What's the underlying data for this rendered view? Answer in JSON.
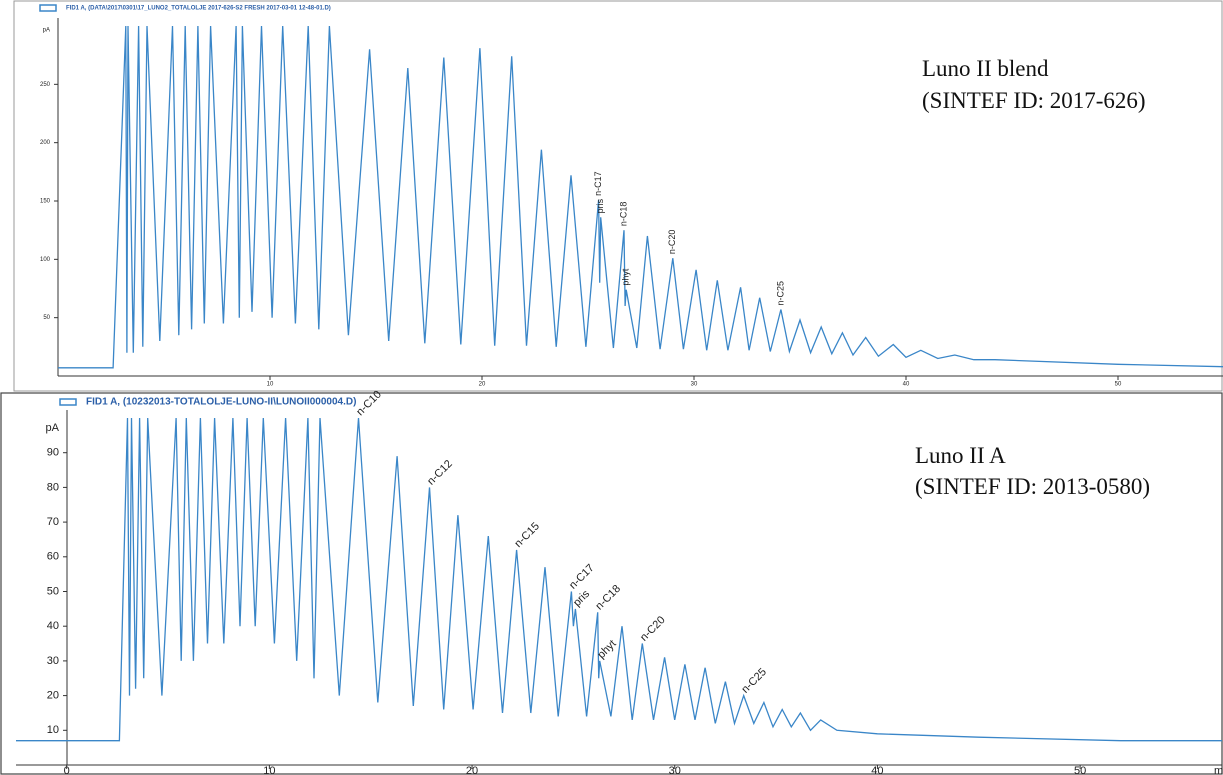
{
  "chart_data": [
    {
      "type": "line",
      "title": "Luno II blend",
      "subtitle": "(SINTEF ID: 2017-626)",
      "y_label": "pA",
      "x": [
        0,
        2.6,
        3.2,
        3.25,
        3.3,
        3.55,
        3.8,
        4.0,
        4.2,
        4.8,
        5.4,
        5.7,
        6.0,
        6.3,
        6.6,
        6.9,
        7.2,
        7.8,
        8.4,
        8.55,
        8.7,
        9.15,
        9.6,
        10.1,
        10.6,
        11.2,
        11.8,
        12.3,
        12.8,
        13.7,
        14.7,
        15.6,
        16.5,
        17.3,
        18.2,
        19.0,
        19.9,
        20.6,
        21.4,
        22.1,
        22.8,
        23.5,
        24.2,
        24.9,
        25.5,
        25.55,
        25.6,
        26.2,
        26.7,
        26.75,
        26.8,
        27.3,
        27.8,
        28.4,
        29.0,
        29.5,
        30.1,
        30.6,
        31.1,
        31.6,
        32.2,
        32.6,
        33.1,
        33.6,
        34.1,
        34.5,
        35.0,
        35.5,
        36.0,
        36.5,
        37.0,
        37.5,
        38.1,
        38.7,
        39.4,
        40.0,
        40.7,
        41.5,
        42.3,
        43.2,
        44.2,
        50,
        55
      ],
      "series": [
        {
          "name": "FID1 A, (DATA\\2017\\0301\\17_LUNO2_TOTALOLJE 2017-626-S2 FRESH 2017-03-01 12-48-01.D)",
          "color": "#3a86c8",
          "values": [
            7,
            7,
            300,
            20,
            300,
            20,
            300,
            25,
            300,
            30,
            300,
            35,
            300,
            40,
            300,
            45,
            300,
            45,
            300,
            50,
            300,
            55,
            300,
            50,
            300,
            45,
            300,
            40,
            300,
            35,
            280,
            30,
            264,
            28,
            273,
            27,
            281,
            26,
            274,
            26,
            194,
            25,
            172,
            25,
            151,
            80,
            136,
            24,
            125,
            60,
            74,
            24,
            120,
            23,
            101,
            23,
            91,
            22,
            82,
            22,
            76,
            22,
            67,
            21,
            57,
            21,
            48,
            20,
            42,
            19,
            37,
            18,
            33,
            17,
            27,
            16,
            22,
            15,
            18,
            14,
            14,
            10,
            8
          ]
        }
      ],
      "xlim": [
        0,
        55
      ],
      "ylim": [
        0,
        300
      ],
      "xticks": [
        10,
        20,
        30,
        40,
        50
      ],
      "yticks": [
        50,
        100,
        150,
        200,
        250
      ],
      "annotations": [
        {
          "text": "n-C17",
          "x": 25.5,
          "y": 151
        },
        {
          "text": "pris",
          "x": 25.6,
          "y": 136
        },
        {
          "text": "n-C18",
          "x": 26.7,
          "y": 125
        },
        {
          "text": "phyt",
          "x": 26.8,
          "y": 74
        },
        {
          "text": "n-C20",
          "x": 29.0,
          "y": 101
        },
        {
          "text": "n-C25",
          "x": 34.1,
          "y": 57
        }
      ]
    },
    {
      "type": "line",
      "title": "Luno II A",
      "subtitle": "(SINTEF ID: 2013-0580)",
      "y_label": "pA",
      "x_label": "min",
      "x": [
        -2.5,
        2.6,
        3.0,
        3.1,
        3.2,
        3.4,
        3.6,
        3.8,
        4.0,
        4.7,
        5.4,
        5.65,
        5.9,
        6.25,
        6.6,
        6.95,
        7.3,
        7.75,
        8.2,
        8.55,
        8.9,
        9.3,
        9.7,
        10.25,
        10.8,
        11.35,
        11.9,
        12.2,
        12.5,
        13.45,
        14.4,
        15.35,
        16.3,
        17.1,
        17.9,
        18.6,
        19.3,
        20.05,
        20.8,
        21.5,
        22.2,
        22.9,
        23.6,
        24.25,
        24.9,
        25.0,
        25.1,
        25.65,
        26.2,
        26.25,
        26.3,
        26.85,
        27.4,
        27.9,
        28.4,
        28.95,
        29.5,
        30.0,
        30.5,
        31.0,
        31.5,
        32.0,
        32.5,
        32.95,
        33.4,
        33.9,
        34.4,
        34.85,
        35.3,
        35.75,
        36.2,
        36.7,
        37.2,
        38,
        40,
        45,
        52,
        57
      ],
      "series": [
        {
          "name": "FID1 A, (10232013-TOTALOLJE-LUNO-II\\LUNOII000004.D)",
          "color": "#3a86c8",
          "values": [
            7,
            7,
            100,
            20,
            100,
            22,
            100,
            25,
            100,
            20,
            100,
            30,
            100,
            30,
            100,
            35,
            100,
            35,
            100,
            40,
            100,
            40,
            100,
            35,
            100,
            30,
            100,
            25,
            100,
            20,
            100,
            18,
            89,
            17,
            80,
            16,
            72,
            16,
            66,
            15,
            62,
            15,
            57,
            14,
            50,
            40,
            45,
            14,
            44,
            25,
            30,
            14,
            40,
            13,
            35,
            13,
            31,
            13,
            29,
            13,
            28,
            12,
            24,
            12,
            20,
            12,
            18,
            11,
            16,
            11,
            15,
            10,
            13,
            10,
            9,
            8,
            7,
            7
          ]
        }
      ],
      "xlim": [
        -2.5,
        57
      ],
      "ylim": [
        0,
        100
      ],
      "xticks": [
        0,
        10,
        20,
        30,
        40,
        50
      ],
      "yticks": [
        10,
        20,
        30,
        40,
        50,
        60,
        70,
        80,
        90
      ],
      "annotations": [
        {
          "text": "n-C10",
          "x": 14.4,
          "y": 100
        },
        {
          "text": "n-C12",
          "x": 17.9,
          "y": 80
        },
        {
          "text": "n-C15",
          "x": 22.2,
          "y": 62
        },
        {
          "text": "n-C17",
          "x": 24.9,
          "y": 50
        },
        {
          "text": "pris",
          "x": 25.1,
          "y": 45
        },
        {
          "text": "n-C18",
          "x": 26.2,
          "y": 44
        },
        {
          "text": "phyt",
          "x": 26.3,
          "y": 30
        },
        {
          "text": "n-C20",
          "x": 28.4,
          "y": 35
        },
        {
          "text": "n-C25",
          "x": 33.4,
          "y": 20
        }
      ]
    }
  ]
}
